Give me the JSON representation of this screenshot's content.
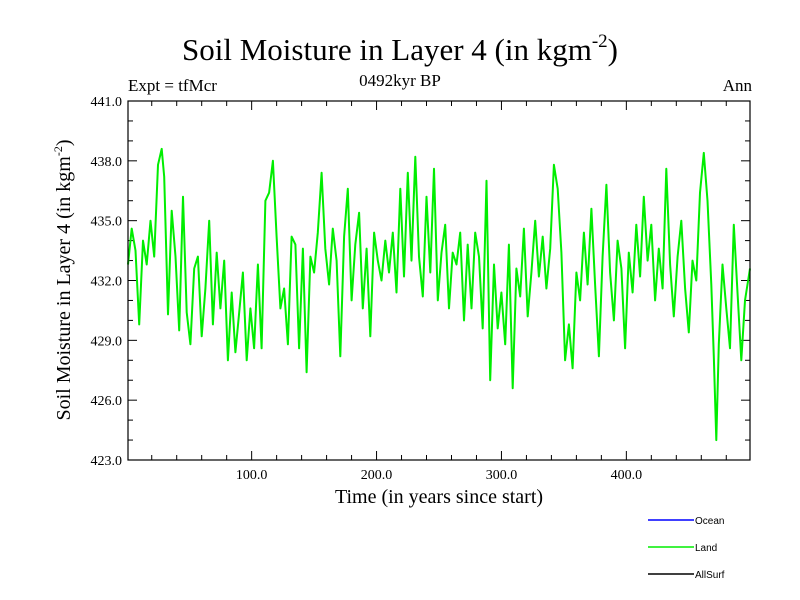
{
  "chart_data": {
    "type": "line",
    "title_main": "Soil Moisture in Layer 4 (in kgm",
    "title_exp": "-2",
    "title_close": ")",
    "subtitle_left": "Expt = tfMcr",
    "subtitle_center": "0492kyr BP",
    "subtitle_right": "Ann",
    "xlabel": "Time (in years since start)",
    "ylabel_main": "Soil Moisture in Layer 4 (in kgm",
    "ylabel_exp": "-2",
    "ylabel_close": ")",
    "xlim": [
      1,
      499
    ],
    "ylim": [
      423.0,
      441.0
    ],
    "xticks": [
      100,
      200,
      300,
      400
    ],
    "xtick_labels": [
      "100.0",
      "200.0",
      "300.0",
      "400.0"
    ],
    "yticks": [
      423,
      426,
      429,
      432,
      435,
      438,
      441
    ],
    "ytick_labels": [
      "423.0",
      "426.0",
      "429.0",
      "432.0",
      "435.0",
      "438.0",
      "441.0"
    ],
    "legend_position": "bottom-right",
    "series": [
      {
        "name": "Ocean",
        "color": "#0000ff",
        "points": []
      },
      {
        "name": "Land",
        "color": "#00ee00",
        "points": [
          [
            1,
            432.8
          ],
          [
            4,
            434.6
          ],
          [
            7,
            433.5
          ],
          [
            10,
            429.8
          ],
          [
            13,
            434.0
          ],
          [
            16,
            432.8
          ],
          [
            19,
            435.0
          ],
          [
            22,
            433.2
          ],
          [
            25,
            437.8
          ],
          [
            28,
            438.6
          ],
          [
            30,
            437.2
          ],
          [
            33,
            430.3
          ],
          [
            36,
            435.5
          ],
          [
            39,
            433.2
          ],
          [
            42,
            429.5
          ],
          [
            45,
            436.2
          ],
          [
            48,
            430.4
          ],
          [
            51,
            428.8
          ],
          [
            54,
            432.6
          ],
          [
            57,
            433.2
          ],
          [
            60,
            429.2
          ],
          [
            63,
            431.6
          ],
          [
            66,
            435.0
          ],
          [
            69,
            429.8
          ],
          [
            72,
            433.4
          ],
          [
            75,
            430.6
          ],
          [
            78,
            433.0
          ],
          [
            81,
            428.0
          ],
          [
            84,
            431.4
          ],
          [
            87,
            428.4
          ],
          [
            90,
            430.4
          ],
          [
            93,
            432.4
          ],
          [
            96,
            428.0
          ],
          [
            99,
            430.6
          ],
          [
            102,
            428.6
          ],
          [
            105,
            432.8
          ],
          [
            108,
            428.6
          ],
          [
            111,
            436.0
          ],
          [
            114,
            436.4
          ],
          [
            117,
            438.0
          ],
          [
            120,
            434.2
          ],
          [
            123,
            430.6
          ],
          [
            126,
            431.6
          ],
          [
            129,
            428.8
          ],
          [
            132,
            434.2
          ],
          [
            135,
            433.8
          ],
          [
            138,
            428.6
          ],
          [
            141,
            433.6
          ],
          [
            144,
            427.4
          ],
          [
            147,
            433.2
          ],
          [
            150,
            432.4
          ],
          [
            153,
            434.4
          ],
          [
            156,
            437.4
          ],
          [
            159,
            433.6
          ],
          [
            162,
            431.8
          ],
          [
            165,
            434.6
          ],
          [
            168,
            433.0
          ],
          [
            171,
            428.2
          ],
          [
            174,
            434.2
          ],
          [
            177,
            436.6
          ],
          [
            180,
            431.0
          ],
          [
            183,
            433.8
          ],
          [
            186,
            435.4
          ],
          [
            189,
            430.6
          ],
          [
            192,
            433.6
          ],
          [
            195,
            429.2
          ],
          [
            198,
            434.4
          ],
          [
            201,
            433.0
          ],
          [
            204,
            432.0
          ],
          [
            207,
            434.0
          ],
          [
            210,
            432.4
          ],
          [
            213,
            434.4
          ],
          [
            216,
            431.4
          ],
          [
            219,
            436.6
          ],
          [
            222,
            432.2
          ],
          [
            225,
            437.4
          ],
          [
            228,
            433.0
          ],
          [
            231,
            438.2
          ],
          [
            234,
            433.2
          ],
          [
            237,
            431.2
          ],
          [
            240,
            436.2
          ],
          [
            243,
            432.4
          ],
          [
            246,
            437.6
          ],
          [
            249,
            431.0
          ],
          [
            252,
            433.4
          ],
          [
            255,
            434.8
          ],
          [
            258,
            430.6
          ],
          [
            261,
            433.4
          ],
          [
            264,
            432.8
          ],
          [
            267,
            434.4
          ],
          [
            270,
            430.0
          ],
          [
            273,
            433.8
          ],
          [
            276,
            430.6
          ],
          [
            279,
            434.4
          ],
          [
            282,
            433.2
          ],
          [
            285,
            429.6
          ],
          [
            288,
            437.0
          ],
          [
            291,
            427.0
          ],
          [
            294,
            432.8
          ],
          [
            297,
            429.6
          ],
          [
            300,
            431.4
          ],
          [
            303,
            428.8
          ],
          [
            306,
            433.8
          ],
          [
            309,
            426.6
          ],
          [
            312,
            432.6
          ],
          [
            315,
            431.2
          ],
          [
            318,
            434.6
          ],
          [
            321,
            430.2
          ],
          [
            324,
            432.4
          ],
          [
            327,
            435.0
          ],
          [
            330,
            432.2
          ],
          [
            333,
            434.2
          ],
          [
            336,
            431.6
          ],
          [
            339,
            433.6
          ],
          [
            342,
            437.8
          ],
          [
            345,
            436.6
          ],
          [
            348,
            433.4
          ],
          [
            351,
            428.0
          ],
          [
            354,
            429.8
          ],
          [
            357,
            427.6
          ],
          [
            360,
            432.4
          ],
          [
            363,
            431.0
          ],
          [
            366,
            434.4
          ],
          [
            369,
            431.8
          ],
          [
            372,
            435.6
          ],
          [
            375,
            431.8
          ],
          [
            378,
            428.2
          ],
          [
            381,
            433.2
          ],
          [
            384,
            436.8
          ],
          [
            387,
            432.4
          ],
          [
            390,
            430.0
          ],
          [
            393,
            434.0
          ],
          [
            396,
            432.6
          ],
          [
            399,
            428.6
          ],
          [
            402,
            433.4
          ],
          [
            405,
            431.4
          ],
          [
            408,
            434.8
          ],
          [
            411,
            432.2
          ],
          [
            414,
            436.2
          ],
          [
            417,
            433.0
          ],
          [
            420,
            434.8
          ],
          [
            423,
            431.0
          ],
          [
            426,
            433.6
          ],
          [
            429,
            431.6
          ],
          [
            432,
            437.6
          ],
          [
            435,
            432.8
          ],
          [
            438,
            430.2
          ],
          [
            441,
            433.2
          ],
          [
            444,
            435.0
          ],
          [
            447,
            431.6
          ],
          [
            450,
            429.4
          ],
          [
            453,
            433.0
          ],
          [
            456,
            432.0
          ],
          [
            459,
            436.4
          ],
          [
            462,
            438.4
          ],
          [
            465,
            436.0
          ],
          [
            468,
            431.8
          ],
          [
            470,
            428.2
          ],
          [
            472,
            424.0
          ],
          [
            474,
            428.8
          ],
          [
            477,
            432.8
          ],
          [
            480,
            430.6
          ],
          [
            483,
            428.6
          ],
          [
            486,
            434.8
          ],
          [
            489,
            431.4
          ],
          [
            492,
            428.0
          ],
          [
            495,
            431.0
          ],
          [
            499,
            432.6
          ]
        ]
      },
      {
        "name": "AllSurf",
        "color": "#000000",
        "points": []
      }
    ]
  }
}
